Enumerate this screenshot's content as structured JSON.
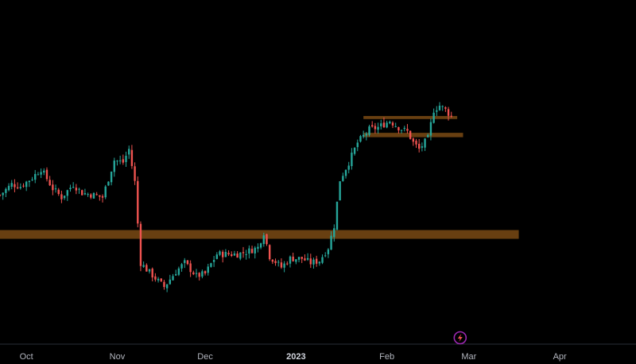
{
  "chart_data": {
    "type": "candlestick",
    "title": "",
    "xlabel": "",
    "ylabel": "",
    "x_tick_labels": [
      {
        "label": "Oct",
        "date": "2022-10-01",
        "emphasis": false
      },
      {
        "label": "Nov",
        "date": "2022-11-01",
        "emphasis": false
      },
      {
        "label": "Dec",
        "date": "2022-12-01",
        "emphasis": false
      },
      {
        "label": "2023",
        "date": "2023-01-01",
        "emphasis": true
      },
      {
        "label": "Feb",
        "date": "2023-02-01",
        "emphasis": false
      },
      {
        "label": "Mar",
        "date": "2023-03-01",
        "emphasis": false
      },
      {
        "label": "Apr",
        "date": "2023-04-01",
        "emphasis": false
      }
    ],
    "x_range": [
      "2022-09-22",
      "2023-04-27"
    ],
    "y_range": [
      0,
      100
    ],
    "price_axis_visible": false,
    "grid": false,
    "colors": {
      "background": "#000000",
      "up": "#26a69a",
      "down": "#ef5350",
      "zone": "#7a4a14",
      "axis_line": "#2a2e39",
      "axis_text": "#b2b5be",
      "event_marker": "#9c27b0"
    },
    "close_path": [
      [
        "2022-09-22",
        58
      ],
      [
        "2022-09-26",
        63
      ],
      [
        "2022-09-29",
        62
      ],
      [
        "2022-10-03",
        66
      ],
      [
        "2022-10-06",
        70
      ],
      [
        "2022-10-10",
        61
      ],
      [
        "2022-10-13",
        57
      ],
      [
        "2022-10-17",
        63
      ],
      [
        "2022-10-20",
        59
      ],
      [
        "2022-10-24",
        58
      ],
      [
        "2022-10-27",
        57
      ],
      [
        "2022-10-31",
        74
      ],
      [
        "2022-11-03",
        73
      ],
      [
        "2022-11-05",
        79
      ],
      [
        "2022-11-07",
        64
      ],
      [
        "2022-11-08",
        45
      ],
      [
        "2022-11-09",
        27
      ],
      [
        "2022-11-11",
        24
      ],
      [
        "2022-11-14",
        20
      ],
      [
        "2022-11-17",
        16
      ],
      [
        "2022-11-21",
        23
      ],
      [
        "2022-11-24",
        27
      ],
      [
        "2022-11-28",
        21
      ],
      [
        "2022-12-01",
        22
      ],
      [
        "2022-12-05",
        31
      ],
      [
        "2022-12-08",
        31
      ],
      [
        "2022-12-12",
        31
      ],
      [
        "2022-12-15",
        32
      ],
      [
        "2022-12-19",
        34
      ],
      [
        "2022-12-21",
        41
      ],
      [
        "2022-12-23",
        30
      ],
      [
        "2022-12-27",
        25
      ],
      [
        "2022-12-30",
        29
      ],
      [
        "2023-01-03",
        29
      ],
      [
        "2023-01-06",
        27
      ],
      [
        "2023-01-09",
        28
      ],
      [
        "2023-01-12",
        34
      ],
      [
        "2023-01-14",
        44
      ],
      [
        "2023-01-16",
        65
      ],
      [
        "2023-01-19",
        73
      ],
      [
        "2023-01-22",
        82
      ],
      [
        "2023-01-26",
        88
      ],
      [
        "2023-01-29",
        89
      ],
      [
        "2023-02-02",
        92
      ],
      [
        "2023-02-05",
        89
      ],
      [
        "2023-02-08",
        87
      ],
      [
        "2023-02-10",
        82
      ],
      [
        "2023-02-12",
        79
      ],
      [
        "2023-02-15",
        84
      ],
      [
        "2023-02-17",
        97
      ],
      [
        "2023-02-19",
        99
      ],
      [
        "2023-02-21",
        97
      ],
      [
        "2023-02-23",
        94
      ]
    ],
    "zones": [
      {
        "type": "support",
        "y_top": 42,
        "y_bottom": 38,
        "x_start": "2022-09-22",
        "x_end": "2023-03-18"
      },
      {
        "type": "resistance",
        "y_top": 86.5,
        "y_bottom": 84.5,
        "x_start": "2023-01-24",
        "x_end": "2023-02-27"
      },
      {
        "type": "resistance",
        "y_top": 94.2,
        "y_bottom": 92.8,
        "x_start": "2023-01-24",
        "x_end": "2023-02-25"
      }
    ],
    "event_marker": {
      "date": "2023-02-26",
      "icon": "lightning-icon"
    }
  }
}
